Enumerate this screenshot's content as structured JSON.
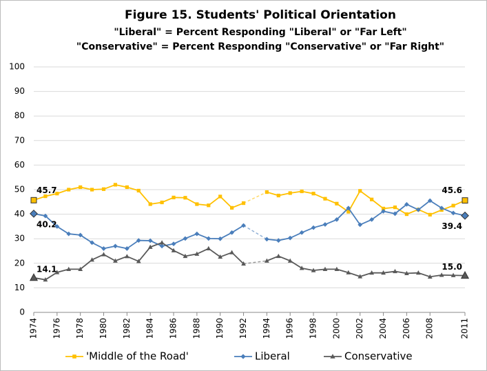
{
  "chart_data": {
    "type": "line",
    "title": "Figure 15.  Students' Political Orientation",
    "subtitle": [
      "\"Liberal\" = Percent Responding \"Liberal\" or \"Far Left\"",
      "\"Conservative\" = Percent Responding \"Conservative\" or \"Far Right\""
    ],
    "x": [
      1974,
      1975,
      1976,
      1977,
      1978,
      1979,
      1980,
      1981,
      1982,
      1983,
      1984,
      1985,
      1986,
      1987,
      1988,
      1989,
      1990,
      1991,
      1992,
      1993,
      1994,
      1995,
      1996,
      1997,
      1998,
      1999,
      2000,
      2001,
      2002,
      2003,
      2004,
      2005,
      2006,
      2007,
      2008,
      2009,
      2010,
      2011
    ],
    "series": [
      {
        "name": "'Middle of the Road'",
        "color": "#ffc000",
        "marker": "square",
        "values": [
          45.7,
          47.3,
          48.4,
          50.0,
          51.0,
          50.0,
          50.2,
          52.0,
          51.0,
          49.6,
          44.1,
          44.8,
          46.8,
          46.7,
          44.1,
          43.6,
          47.2,
          42.6,
          44.5,
          null,
          49.0,
          47.6,
          48.6,
          49.3,
          48.4,
          46.3,
          44.3,
          41.0,
          49.5,
          46.0,
          42.3,
          42.8,
          40.0,
          41.9,
          39.8,
          41.7,
          43.5,
          45.6
        ],
        "value_labels": [
          "45.7",
          null,
          null,
          null,
          null,
          null,
          null,
          null,
          null,
          null,
          null,
          null,
          null,
          null,
          null,
          null,
          null,
          null,
          null,
          null,
          null,
          null,
          null,
          null,
          null,
          null,
          null,
          null,
          null,
          null,
          null,
          null,
          null,
          null,
          null,
          null,
          null,
          "45.6"
        ]
      },
      {
        "name": "Liberal",
        "color": "#4a7ebb",
        "marker": "diamond",
        "values": [
          40.2,
          39.3,
          35.0,
          32.0,
          31.5,
          28.4,
          26.0,
          27.0,
          26.0,
          29.3,
          29.2,
          27.0,
          27.9,
          30.1,
          32.0,
          30.1,
          30.0,
          32.5,
          35.4,
          null,
          29.8,
          29.3,
          30.3,
          32.5,
          34.5,
          35.8,
          37.8,
          42.5,
          35.7,
          37.8,
          41.2,
          40.2,
          44.0,
          41.8,
          45.5,
          42.5,
          40.5,
          39.4
        ],
        "value_labels": [
          "40.2",
          null,
          null,
          null,
          null,
          null,
          null,
          null,
          null,
          null,
          null,
          null,
          null,
          null,
          null,
          null,
          null,
          null,
          null,
          null,
          null,
          null,
          null,
          null,
          null,
          null,
          null,
          null,
          null,
          null,
          null,
          null,
          null,
          null,
          null,
          null,
          null,
          "39.4"
        ]
      },
      {
        "name": "Conservative",
        "color": "#595959",
        "marker": "triangle",
        "values": [
          14.1,
          13.3,
          16.3,
          17.6,
          17.6,
          21.4,
          23.6,
          21.0,
          22.8,
          20.8,
          26.6,
          28.4,
          25.2,
          22.9,
          23.8,
          26.0,
          22.6,
          24.4,
          19.8,
          null,
          21.0,
          22.9,
          21.0,
          18.0,
          17.1,
          17.6,
          17.6,
          16.2,
          14.6,
          16.1,
          16.1,
          16.7,
          15.9,
          16.1,
          14.5,
          15.2,
          15.1,
          15.0
        ],
        "value_labels": [
          "14.1",
          null,
          null,
          null,
          null,
          null,
          null,
          null,
          null,
          null,
          null,
          null,
          null,
          null,
          null,
          null,
          null,
          null,
          null,
          null,
          null,
          null,
          null,
          null,
          null,
          null,
          null,
          null,
          null,
          null,
          null,
          null,
          null,
          null,
          null,
          null,
          null,
          "15.0"
        ]
      }
    ],
    "xlim": [
      1974,
      2011
    ],
    "xticks": [
      1974,
      1976,
      1978,
      1980,
      1982,
      1984,
      1986,
      1988,
      1990,
      1992,
      1994,
      1996,
      1998,
      2000,
      2002,
      2004,
      2006,
      2008,
      2011
    ],
    "ylim": [
      0,
      100
    ],
    "yticks": [
      0,
      10,
      20,
      30,
      40,
      50,
      60,
      70,
      80,
      90,
      100
    ],
    "grid": true,
    "legend": "bottom"
  }
}
